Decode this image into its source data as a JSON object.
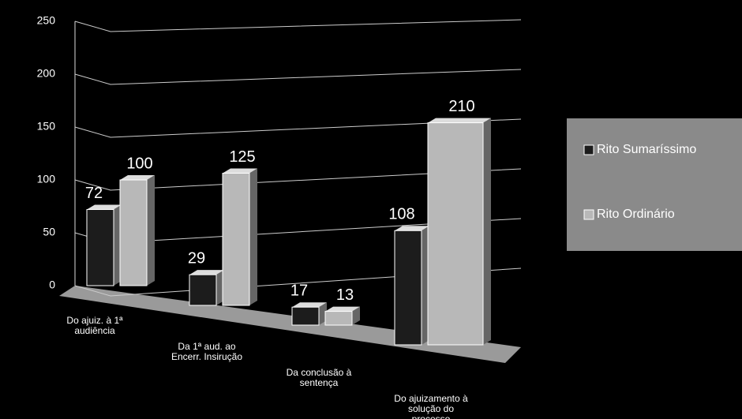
{
  "chart_data": {
    "type": "bar3d",
    "categories": [
      "Do ajuiz. à 1ª audiência",
      "Da 1ª aud. ao Encerr. Insirução",
      "Da conclusão à sentença",
      "Do ajuizamento à solução do processo"
    ],
    "series": [
      {
        "name": "Rito Sumaríssimo",
        "color": "#1c1c1c",
        "values": [
          72,
          29,
          17,
          108
        ]
      },
      {
        "name": "Rito Ordinário",
        "color": "#b8b8b8",
        "values": [
          100,
          125,
          13,
          210
        ]
      }
    ],
    "ylim": [
      0,
      250
    ],
    "yticks": [
      0,
      50,
      100,
      150,
      200,
      250
    ],
    "grid": true,
    "legend": "right"
  }
}
